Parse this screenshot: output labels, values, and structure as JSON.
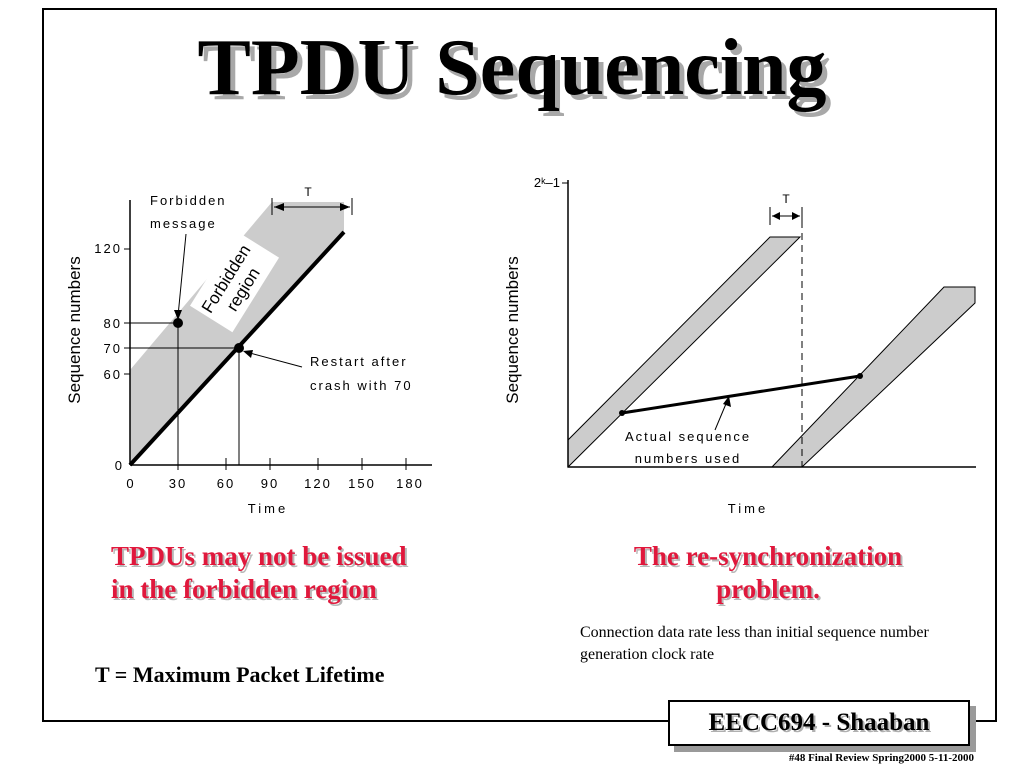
{
  "title": "TPDU Sequencing",
  "diagram_left": {
    "y_axis_label": "Sequence numbers",
    "x_axis_label": "Time",
    "y_ticks": [
      "120",
      "80",
      "70",
      "60",
      "0"
    ],
    "x_ticks": [
      "0",
      "30",
      "60",
      "90",
      "120",
      "150",
      "180"
    ],
    "t_label": "T",
    "forbidden_message_line1": "Forbidden",
    "forbidden_message_line2": "message",
    "region_label_line1": "Forbidden",
    "region_label_line2": "region",
    "restart_line1": "Restart after",
    "restart_line2": "crash with 70"
  },
  "diagram_right": {
    "y_axis_label": "Sequence numbers",
    "x_axis_label": "Time",
    "y_max_label": "2ᵏ–1",
    "t_label": "T",
    "actual_line1": "Actual sequence",
    "actual_line2": "numbers used"
  },
  "caption_left_line1": "TPDUs may not be issued",
  "caption_left_line2": "in the forbidden region",
  "caption_right_line1": "The re-synchronization",
  "caption_right_line2": "problem.",
  "caption_right_note": "Connection data rate less than initial sequence number generation  clock rate",
  "formula": "T = Maximum Packet Lifetime",
  "course_badge": "EECC694 - Shaaban",
  "footer": "#48  Final Review   Spring2000    5-11-2000"
}
